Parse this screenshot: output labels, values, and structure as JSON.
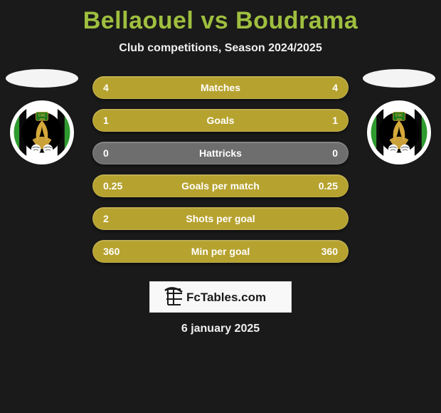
{
  "title": {
    "player1": "Bellaouel",
    "vs": "vs",
    "player2": "Boudrama",
    "color": "#9fbf3f"
  },
  "subtitle": "Club competitions, Season 2024/2025",
  "date": "6 january 2025",
  "background_color": "#1a1a1a",
  "side_ellipse_color": "#f4f4f4",
  "crest": {
    "outer": "#ffffff",
    "stripe_green": "#2e9b2e",
    "stripe_black": "#0a0a0a",
    "center_black": "#000000",
    "accent_gold": "#d5a93b",
    "badge_text": "CSC",
    "badge_year": "1896",
    "badge_bg": "#1c7a1c"
  },
  "rows": [
    {
      "label": "Matches",
      "left": "4",
      "right": "4",
      "left_color": "#b6a22e",
      "right_color": "#b6a22e",
      "split": 0.5
    },
    {
      "label": "Goals",
      "left": "1",
      "right": "1",
      "left_color": "#b6a22e",
      "right_color": "#b6a22e",
      "split": 0.5
    },
    {
      "label": "Hattricks",
      "left": "0",
      "right": "0",
      "left_color": "#6e6e6e",
      "right_color": "#6e6e6e",
      "split": 0.5
    },
    {
      "label": "Goals per match",
      "left": "0.25",
      "right": "0.25",
      "left_color": "#b6a22e",
      "right_color": "#b6a22e",
      "split": 0.5
    },
    {
      "label": "Shots per goal",
      "left": "2",
      "right": "",
      "left_color": "#b6a22e",
      "right_color": "#b6a22e",
      "split": 1.0
    },
    {
      "label": "Min per goal",
      "left": "360",
      "right": "360",
      "left_color": "#b6a22e",
      "right_color": "#b6a22e",
      "split": 0.5
    }
  ],
  "branding": {
    "text": "FcTables.com",
    "text_color": "#1a1a1a",
    "bg": "#f8f8f8"
  },
  "row_style": {
    "height": 32,
    "radius": 16,
    "label_fontsize": 14,
    "value_fontsize": 14,
    "text_color": "#ffffff"
  }
}
